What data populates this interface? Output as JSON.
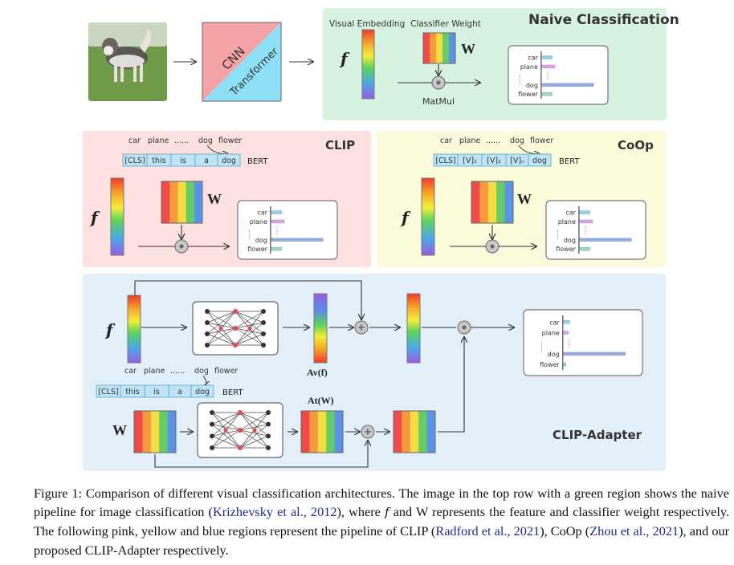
{
  "naive": {
    "title": "Naive Classification",
    "visual_embedding_label": "Visual Embedding",
    "classifier_weight_label": "Classifier Weight",
    "op_label": "MatMul",
    "background": "#d8f2e2"
  },
  "backbone": {
    "cnn": "CNN",
    "transformer": "Transformer",
    "cnn_color": "#f5a3a6",
    "transformer_color": "#8ee0f7"
  },
  "symbols": {
    "f": "f",
    "w": "W",
    "av": "Av(f)",
    "at": "At(W)"
  },
  "class_labels": [
    "car",
    "plane",
    "......",
    "dog",
    "flower"
  ],
  "text_encoder": "BERT",
  "clip": {
    "title": "CLIP",
    "tokens": [
      "[CLS]",
      "this",
      "is",
      "a",
      "dog"
    ],
    "background": "#fde1e1"
  },
  "coop": {
    "title": "CoOp",
    "tokens": [
      "[CLS]",
      "[V]₁",
      "[V]₂",
      "[V]ₙ",
      "dog"
    ],
    "background": "#fbfbdc"
  },
  "adapter": {
    "title": "CLIP-Adapter",
    "tokens": [
      "[CLS]",
      "this",
      "is",
      "a",
      "dog"
    ],
    "background": "#e3f0fa"
  },
  "score_chart": {
    "labels": [
      "car",
      "plane",
      "dog",
      "flower"
    ],
    "colors": [
      "#8fd3ef",
      "#e59be8",
      "#9aa6ea",
      "#8fdcc6"
    ],
    "values_baseline": [
      0.2,
      0.25,
      1.0,
      0.2
    ],
    "values_adapter": [
      0.1,
      0.08,
      1.0,
      0.04
    ]
  },
  "weight_colors": [
    "#f04a4a",
    "#f79a3c",
    "#f5dc42",
    "#66cc66",
    "#5b93e6"
  ],
  "caption": {
    "p1": "Figure 1: Comparison of different visual classification architectures. The image in the top row with a green region shows the naive pipeline for image classification (",
    "ref1": "Krizhevsky et al., 2012",
    "p2": "), where ",
    "f": "f",
    "p3": " and W represents the feature and classifier weight respectively. The following pink, yellow and blue regions represent the pipeline of CLIP (",
    "ref2": "Radford et al., 2021",
    "p4": "), CoOp (",
    "ref3": "Zhou et al., 2021",
    "p5": "), and our proposed CLIP-Adapter respectively."
  }
}
